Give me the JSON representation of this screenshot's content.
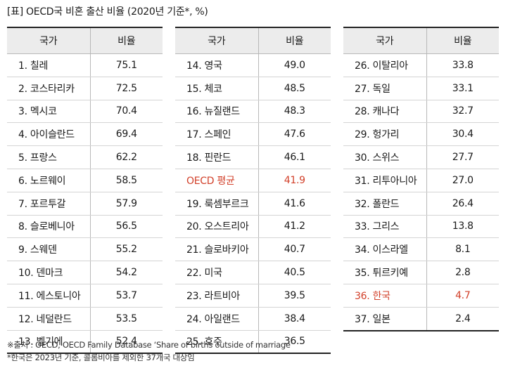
{
  "title": "[표] OECD국 비혼 출산 비율 (2020년 기준*, %)",
  "headers": {
    "country": "국가",
    "ratio": "비율"
  },
  "highlight_color": "#d2402a",
  "tables": [
    {
      "rows": [
        {
          "country": "1. 칠레",
          "value": "75.1"
        },
        {
          "country": "2. 코스타리카",
          "value": "72.5"
        },
        {
          "country": "3. 멕시코",
          "value": "70.4"
        },
        {
          "country": "4. 아이슬란드",
          "value": "69.4"
        },
        {
          "country": "5. 프랑스",
          "value": "62.2"
        },
        {
          "country": "6. 노르웨이",
          "value": "58.5"
        },
        {
          "country": "7. 포르투갈",
          "value": "57.9"
        },
        {
          "country": "8. 슬로베니아",
          "value": "56.5"
        },
        {
          "country": "9. 스웨덴",
          "value": "55.2"
        },
        {
          "country": "10. 덴마크",
          "value": "54.2"
        },
        {
          "country": "11. 에스토니아",
          "value": "53.7"
        },
        {
          "country": "12. 네덜란드",
          "value": "53.5"
        },
        {
          "country": "13. 벨기에",
          "value": "52.4"
        }
      ]
    },
    {
      "rows": [
        {
          "country": "14. 영국",
          "value": "49.0"
        },
        {
          "country": "15. 체코",
          "value": "48.5"
        },
        {
          "country": "16. 뉴질랜드",
          "value": "48.3"
        },
        {
          "country": "17. 스페인",
          "value": "47.6"
        },
        {
          "country": "18. 핀란드",
          "value": "46.1"
        },
        {
          "country": "OECD 평균",
          "value": "41.9",
          "highlight": true
        },
        {
          "country": "19. 룩셈부르크",
          "value": "41.6"
        },
        {
          "country": "20. 오스트리아",
          "value": "41.2"
        },
        {
          "country": "21. 슬로바키아",
          "value": "40.7"
        },
        {
          "country": "22. 미국",
          "value": "40.5"
        },
        {
          "country": "23. 라트비아",
          "value": "39.5"
        },
        {
          "country": "24. 아일랜드",
          "value": "38.4"
        },
        {
          "country": "25. 호주",
          "value": "36.5"
        }
      ]
    },
    {
      "rows": [
        {
          "country": "26. 이탈리아",
          "value": "33.8"
        },
        {
          "country": "27. 독일",
          "value": "33.1"
        },
        {
          "country": "28. 캐나다",
          "value": "32.7"
        },
        {
          "country": "29. 헝가리",
          "value": "30.4"
        },
        {
          "country": "30. 스위스",
          "value": "27.7"
        },
        {
          "country": "31. 리투아니아",
          "value": "27.0"
        },
        {
          "country": "32. 폴란드",
          "value": "26.4"
        },
        {
          "country": "33. 그리스",
          "value": "13.8"
        },
        {
          "country": "34. 이스라엘",
          "value": "8.1"
        },
        {
          "country": "35. 튀르키예",
          "value": "2.8"
        },
        {
          "country": "36. 한국",
          "value": "4.7",
          "highlight": true
        },
        {
          "country": "37. 일본",
          "value": "2.4"
        }
      ]
    }
  ],
  "source": "※출처 : OECD, OECD Family Database ‘Share of births outside of marriage’",
  "note": "*한국은 2023년 기준, 콜롬비아를 제외한 37개국 대상임"
}
